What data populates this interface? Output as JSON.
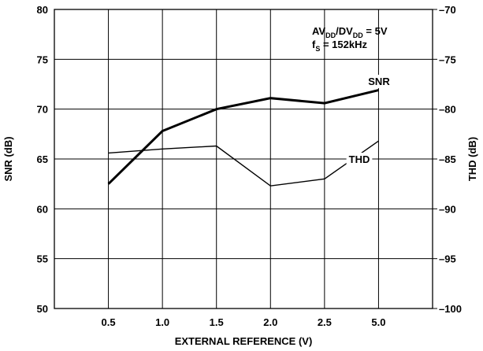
{
  "chart_data": {
    "type": "line",
    "categories": [
      "0.5",
      "1.0",
      "1.5",
      "2.0",
      "2.5",
      "5.0"
    ],
    "x_values": [
      0.5,
      1.0,
      1.5,
      2.0,
      2.5,
      5.0
    ],
    "xlabel": "EXTERNAL REFERENCE (V)",
    "ylabel": "SNR (dB)",
    "y2label": "THD (dB)",
    "ylim": [
      50,
      80
    ],
    "y2lim": [
      -100,
      -70
    ],
    "yticks": [
      "50",
      "55",
      "60",
      "65",
      "70",
      "75",
      "80"
    ],
    "y2ticks": [
      "–100",
      "–95",
      "–90",
      "–85",
      "–80",
      "–75",
      "–70"
    ],
    "grid": true,
    "series": [
      {
        "name": "SNR",
        "axis": "left",
        "values": [
          62.5,
          67.8,
          70.0,
          71.1,
          70.6,
          71.9
        ],
        "color": "#000000",
        "weight": "thick"
      },
      {
        "name": "THD",
        "axis": "right",
        "values": [
          -84.4,
          -84.0,
          -83.7,
          -87.7,
          -87.0,
          -83.2
        ],
        "color": "#000000",
        "weight": "thin"
      }
    ],
    "annotations": {
      "supply": {
        "prefix": "AV",
        "sub1": "DD",
        "mid": "/DV",
        "sub2": "DD",
        "suffix": " = 5V"
      },
      "fs": {
        "prefix": "f",
        "sub": "S",
        "suffix": " = 152kHz"
      }
    }
  }
}
